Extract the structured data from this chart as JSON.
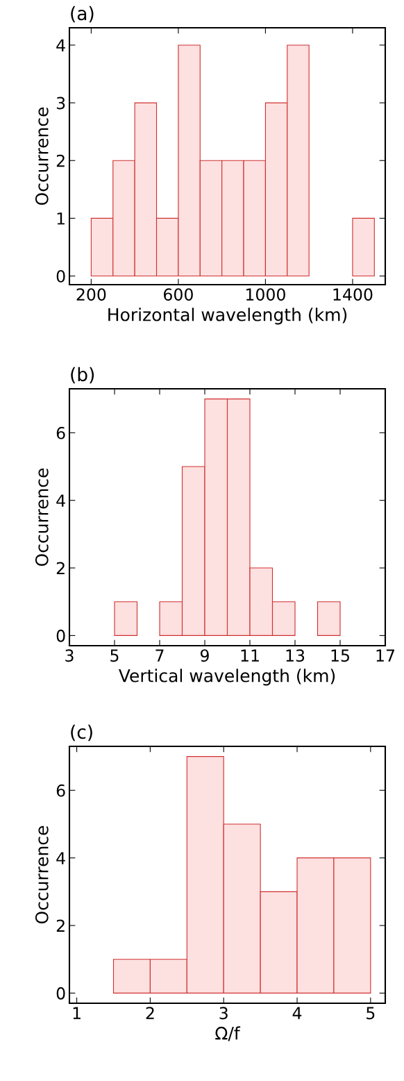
{
  "chart_data": [
    {
      "type": "histogram",
      "title": "(a)",
      "xlabel": "Horizontal wavelength (km)",
      "ylabel": "Occurrence",
      "bins": [
        200,
        300,
        400,
        500,
        600,
        700,
        800,
        900,
        1000,
        1100,
        1200,
        1300,
        1400,
        1500
      ],
      "values": [
        1,
        2,
        3,
        1,
        4,
        2,
        2,
        2,
        3,
        4,
        0,
        0,
        1
      ],
      "color": "#fde0e0",
      "xlim": [
        100,
        1550
      ],
      "xticks": [
        200,
        600,
        1000,
        1400
      ],
      "ylim": [
        -0.15,
        4.3
      ],
      "yticks": [
        0,
        1,
        2,
        3,
        4
      ],
      "grid": false,
      "legend": false
    },
    {
      "type": "histogram",
      "title": "(b)",
      "xlabel": "Vertical wavelength (km)",
      "ylabel": "Occurrence",
      "bins": [
        5,
        6,
        7,
        8,
        9,
        10,
        11,
        12,
        13,
        14,
        15
      ],
      "values": [
        1,
        0,
        1,
        5,
        7,
        7,
        2,
        1,
        0,
        1
      ],
      "color": "#fde0e0",
      "xlim": [
        3,
        17
      ],
      "xticks": [
        3,
        5,
        7,
        9,
        11,
        13,
        15,
        17
      ],
      "ylim": [
        -0.3,
        7.3
      ],
      "yticks": [
        0,
        2,
        4,
        6
      ],
      "grid": false,
      "legend": false
    },
    {
      "type": "histogram",
      "title": "(c)",
      "xlabel": "Ω/f",
      "ylabel": "Occurrence",
      "bins": [
        1.5,
        2,
        2.5,
        3,
        3.5,
        4,
        4.5,
        5
      ],
      "values": [
        1,
        1,
        7,
        5,
        3,
        4,
        4
      ],
      "color": "#fde0e0",
      "xlim": [
        0.9,
        5.2
      ],
      "xticks": [
        1,
        2,
        3,
        4,
        5
      ],
      "ylim": [
        -0.3,
        7.3
      ],
      "yticks": [
        0,
        2,
        4,
        6
      ],
      "grid": false,
      "legend": false
    }
  ]
}
